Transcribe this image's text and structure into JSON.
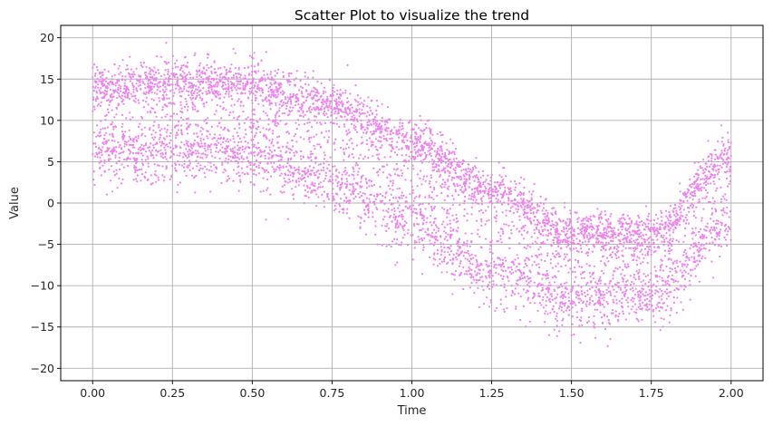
{
  "chart_data": {
    "type": "scatter",
    "title": "Scatter Plot to visualize the trend",
    "xlabel": "Time",
    "ylabel": "Value",
    "xlim": [
      -0.1,
      2.1
    ],
    "ylim": [
      -21.5,
      21.5
    ],
    "xticks": [
      0.0,
      0.25,
      0.5,
      0.75,
      1.0,
      1.25,
      1.5,
      1.75,
      2.0
    ],
    "xtick_labels": [
      "0.00",
      "0.25",
      "0.50",
      "0.75",
      "1.00",
      "1.25",
      "1.50",
      "1.75",
      "2.00"
    ],
    "yticks": [
      -20,
      -15,
      -10,
      -5,
      0,
      5,
      10,
      15,
      20
    ],
    "ytick_labels": [
      "−20",
      "−15",
      "−10",
      "−5",
      "0",
      "5",
      "10",
      "15",
      "20"
    ],
    "grid": true,
    "marker_color": "#ee82ee",
    "trend": {
      "x": [
        0.0,
        0.25,
        0.5,
        0.75,
        1.0,
        1.25,
        1.5,
        1.75,
        2.0
      ],
      "upper_band": [
        14,
        15,
        14.5,
        12,
        7.5,
        1.5,
        -3.5,
        -3.5,
        6
      ],
      "lower_band": [
        5.5,
        6,
        5.5,
        2,
        -3,
        -8.5,
        -12,
        -11.5,
        -3
      ]
    },
    "point_count": 6000
  }
}
